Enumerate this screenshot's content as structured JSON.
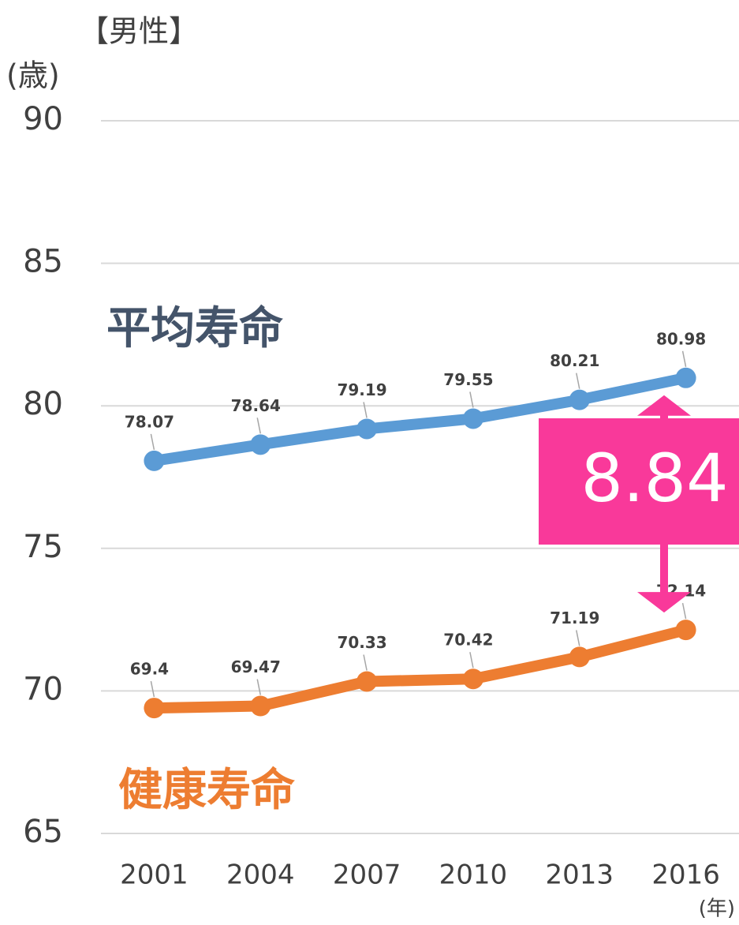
{
  "chart_data": {
    "type": "line",
    "title": "【男性】",
    "y_label": "(歳)",
    "x_label": "(年)",
    "categories": [
      "2001",
      "2004",
      "2007",
      "2010",
      "2013",
      "2016"
    ],
    "series": [
      {
        "name": "平均寿命",
        "color": "#5b9bd5",
        "values": [
          78.07,
          78.64,
          79.19,
          79.55,
          80.21,
          80.98
        ]
      },
      {
        "name": "健康寿命",
        "color": "#ed7d31",
        "values": [
          69.4,
          69.47,
          70.33,
          70.42,
          71.19,
          72.14
        ]
      }
    ],
    "ylim": [
      65,
      90
    ],
    "yticks": [
      65,
      70,
      75,
      80,
      85,
      90
    ],
    "grid": true,
    "annotation": "8.84",
    "annotation_color": "#f9399a"
  }
}
